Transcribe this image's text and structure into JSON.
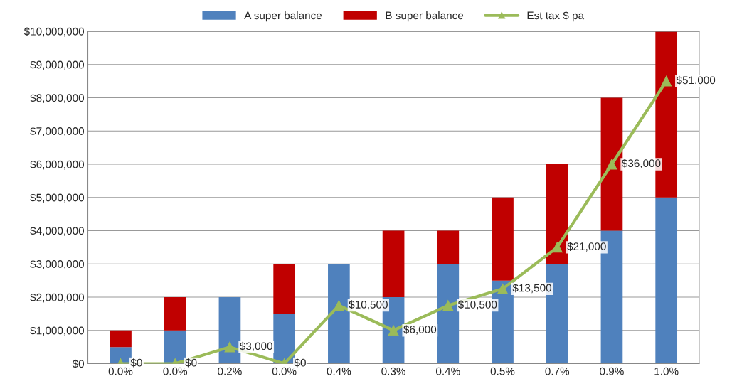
{
  "chart_data": {
    "type": "bar",
    "stacked": true,
    "legend": "top",
    "grid": "y",
    "categories": [
      "0.0%",
      "0.0%",
      "0.2%",
      "0.0%",
      "0.4%",
      "0.3%",
      "0.4%",
      "0.5%",
      "0.7%",
      "0.9%",
      "1.0%"
    ],
    "series": [
      {
        "name": "A super balance",
        "color": "#4f81bd",
        "values": [
          500000,
          1000000,
          2000000,
          1500000,
          3000000,
          2000000,
          3000000,
          2500000,
          3000000,
          4000000,
          5000000
        ]
      },
      {
        "name": "B super balance",
        "color": "#c00000",
        "values": [
          500000,
          1000000,
          0,
          1500000,
          0,
          2000000,
          1000000,
          2500000,
          3000000,
          4000000,
          5000000
        ]
      },
      {
        "name": "Est tax $ pa",
        "type": "line",
        "axis": "y2",
        "color": "#9bbb59",
        "marker": "triangle",
        "values": [
          0,
          0,
          3000,
          0,
          10500,
          6000,
          10500,
          13500,
          21000,
          36000,
          51000
        ],
        "value_labels": [
          "$0",
          "$0",
          "$3,000",
          "$0",
          "$10,500",
          "$6,000",
          "$10,500",
          "$13,500",
          "$21,000",
          "$36,000",
          "$51,000"
        ]
      }
    ],
    "ylim": [
      0,
      10000000
    ],
    "yticks": [
      {
        "value": 0,
        "label": "$0"
      },
      {
        "value": 1000000,
        "label": "$1,000,000"
      },
      {
        "value": 2000000,
        "label": "$2,000,000"
      },
      {
        "value": 3000000,
        "label": "$3,000,000"
      },
      {
        "value": 4000000,
        "label": "$4,000,000"
      },
      {
        "value": 5000000,
        "label": "$5,000,000"
      },
      {
        "value": 6000000,
        "label": "$6,000,000"
      },
      {
        "value": 7000000,
        "label": "$7,000,000"
      },
      {
        "value": 8000000,
        "label": "$8,000,000"
      },
      {
        "value": 9000000,
        "label": "$9,000,000"
      },
      {
        "value": 10000000,
        "label": "$10,000,000"
      }
    ],
    "y2lim": [
      0,
      60000
    ],
    "tick_labels": "xy"
  }
}
